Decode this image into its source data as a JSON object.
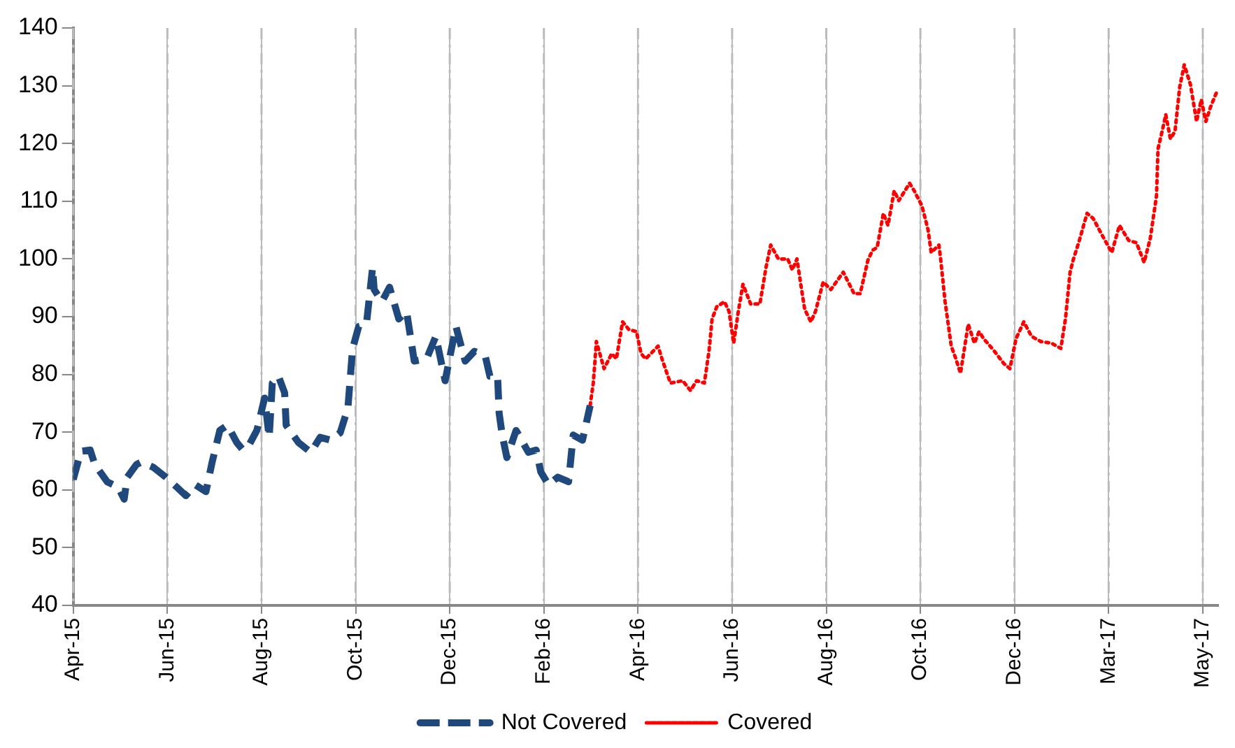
{
  "chart_data": {
    "type": "line",
    "xlim": [
      "2015-04-30",
      "2017-05-11"
    ],
    "ylim": [
      40,
      140
    ],
    "yticks": [
      40,
      50,
      60,
      70,
      80,
      90,
      100,
      110,
      120,
      130,
      140
    ],
    "xticks": [
      {
        "value": "2015-04-30",
        "label": "Apr-15"
      },
      {
        "value": "2015-06-30",
        "label": "Jun-15"
      },
      {
        "value": "2015-08-30",
        "label": "Aug-15"
      },
      {
        "value": "2015-10-30",
        "label": "Oct-15"
      },
      {
        "value": "2015-12-30",
        "label": "Dec-15"
      },
      {
        "value": "2016-02-29",
        "label": "Feb-16"
      },
      {
        "value": "2016-04-30",
        "label": "Apr-16"
      },
      {
        "value": "2016-06-30",
        "label": "Jun-16"
      },
      {
        "value": "2016-08-30",
        "label": "Aug-16"
      },
      {
        "value": "2016-10-30",
        "label": "Oct-16"
      },
      {
        "value": "2016-12-30",
        "label": "Dec-16"
      },
      {
        "value": "2017-03-01",
        "label": "Mar-17"
      },
      {
        "value": "2017-05-01",
        "label": "May-17"
      }
    ],
    "grid": "x",
    "legend": "bottom",
    "marker": "none",
    "series": [
      {
        "name": "Not Covered",
        "color": "#1f497d",
        "line_style": "dashed",
        "x": [
          "2015-04-30",
          "2015-05-05",
          "2015-05-11",
          "2015-05-14",
          "2015-05-22",
          "2015-05-29",
          "2015-06-02",
          "2015-06-04",
          "2015-06-10",
          "2015-06-13",
          "2015-06-21",
          "2015-06-29",
          "2015-07-06",
          "2015-07-12",
          "2015-07-18",
          "2015-07-25",
          "2015-07-29",
          "2015-08-03",
          "2015-08-08",
          "2015-08-14",
          "2015-08-18",
          "2015-08-22",
          "2015-08-27",
          "2015-09-01",
          "2015-09-04",
          "2015-09-06",
          "2015-09-10",
          "2015-09-14",
          "2015-09-15",
          "2015-09-23",
          "2015-10-01",
          "2015-10-07",
          "2015-10-14",
          "2015-10-20",
          "2015-10-25",
          "2015-10-28",
          "2015-11-01",
          "2015-11-06",
          "2015-11-10",
          "2015-11-11",
          "2015-11-16",
          "2015-11-21",
          "2015-11-27",
          "2015-12-02",
          "2015-12-07",
          "2015-12-15",
          "2015-12-21",
          "2015-12-27",
          "2016-01-03",
          "2016-01-09",
          "2016-01-15",
          "2016-01-22",
          "2016-01-25",
          "2016-01-30",
          "2016-01-31",
          "2016-02-02",
          "2016-02-05",
          "2016-02-11",
          "2016-02-19",
          "2016-02-24",
          "2016-02-27",
          "2016-03-03",
          "2016-03-09",
          "2016-03-16",
          "2016-03-19",
          "2016-03-25",
          "2016-03-30"
        ],
        "values": [
          61.8,
          66.7,
          66.9,
          64.4,
          61.4,
          60.5,
          58.4,
          62.2,
          64.4,
          64.8,
          63.9,
          62.2,
          60.5,
          59.0,
          60.9,
          59.7,
          64.8,
          70.3,
          71.2,
          68.2,
          66.9,
          67.8,
          70.3,
          75.9,
          69.1,
          78.5,
          79.7,
          76.8,
          71.2,
          68.2,
          66.5,
          69.1,
          68.6,
          69.9,
          74.2,
          84.4,
          88.3,
          88.7,
          98.5,
          94.7,
          92.6,
          95.1,
          89.6,
          90.9,
          82.3,
          82.7,
          86.6,
          78.9,
          88.3,
          82.3,
          84.0,
          83.2,
          79.7,
          79.7,
          73.3,
          69.5,
          65.6,
          70.3,
          66.5,
          66.9,
          63.1,
          60.9,
          62.2,
          61.4,
          69.5,
          68.6,
          74.6
        ]
      },
      {
        "name": "Covered",
        "color": "#ff0000",
        "line_style": "dotted",
        "x": [
          "2016-03-30",
          "2016-04-01",
          "2016-04-02",
          "2016-04-03",
          "2016-04-08",
          "2016-04-13",
          "2016-04-16",
          "2016-04-20",
          "2016-04-24",
          "2016-04-29",
          "2016-05-02",
          "2016-05-05",
          "2016-05-13",
          "2016-05-16",
          "2016-05-21",
          "2016-05-29",
          "2016-06-03",
          "2016-06-07",
          "2016-06-12",
          "2016-06-15",
          "2016-06-17",
          "2016-06-20",
          "2016-06-25",
          "2016-06-28",
          "2016-07-01",
          "2016-07-04",
          "2016-07-07",
          "2016-07-12",
          "2016-07-18",
          "2016-07-22",
          "2016-07-25",
          "2016-07-30",
          "2016-08-05",
          "2016-08-08",
          "2016-08-11",
          "2016-08-14",
          "2016-08-16",
          "2016-08-20",
          "2016-08-23",
          "2016-08-28",
          "2016-09-02",
          "2016-09-10",
          "2016-09-17",
          "2016-09-21",
          "2016-09-26",
          "2016-09-29",
          "2016-10-02",
          "2016-10-06",
          "2016-10-09",
          "2016-10-13",
          "2016-10-16",
          "2016-10-23",
          "2016-10-26",
          "2016-10-31",
          "2016-11-04",
          "2016-11-06",
          "2016-11-11",
          "2016-11-12",
          "2016-11-15",
          "2016-11-19",
          "2016-11-22",
          "2016-11-25",
          "2016-11-30",
          "2016-12-04",
          "2016-12-07",
          "2016-12-10",
          "2016-12-17",
          "2016-12-23",
          "2016-12-27",
          "2016-12-31",
          "2017-01-05",
          "2017-01-10",
          "2017-01-16",
          "2017-01-23",
          "2017-01-29",
          "2017-02-01",
          "2017-02-04",
          "2017-02-06",
          "2017-02-10",
          "2017-02-15",
          "2017-02-19",
          "2017-02-25",
          "2017-03-03",
          "2017-03-08",
          "2017-03-14",
          "2017-03-19",
          "2017-03-24",
          "2017-03-28",
          "2017-04-01",
          "2017-04-02",
          "2017-04-05",
          "2017-04-07",
          "2017-04-10",
          "2017-04-13",
          "2017-04-16",
          "2017-04-19",
          "2017-04-23",
          "2017-04-27",
          "2017-04-30",
          "2017-05-03",
          "2017-05-06",
          "2017-05-10"
        ],
        "values": [
          74.6,
          78.5,
          81.9,
          85.7,
          81.0,
          83.6,
          82.7,
          89.1,
          87.8,
          87.4,
          83.6,
          82.7,
          84.9,
          82.3,
          78.5,
          78.9,
          77.2,
          78.9,
          78.5,
          84.0,
          89.6,
          91.7,
          92.6,
          90.9,
          85.4,
          90.9,
          95.6,
          92.2,
          92.2,
          98.6,
          102.4,
          100.0,
          100.0,
          98.1,
          100.0,
          94.7,
          91.3,
          89.1,
          90.9,
          96.0,
          94.7,
          97.7,
          94.0,
          94.0,
          99.8,
          101.5,
          102.0,
          107.9,
          105.8,
          111.8,
          110.1,
          113.1,
          111.8,
          109.2,
          105.0,
          101.1,
          102.4,
          100.3,
          92.6,
          84.9,
          82.7,
          80.2,
          88.7,
          85.4,
          87.4,
          86.2,
          84.0,
          81.9,
          81.0,
          86.2,
          89.1,
          86.6,
          85.7,
          85.4,
          84.5,
          89.6,
          97.7,
          99.8,
          103.2,
          107.9,
          107.0,
          104.0,
          101.1,
          105.8,
          103.2,
          102.8,
          99.4,
          103.6,
          110.9,
          119.1,
          122.5,
          125.0,
          120.8,
          122.1,
          129.7,
          133.6,
          130.2,
          123.8,
          127.6,
          123.8,
          126.3,
          128.9
        ]
      }
    ]
  }
}
